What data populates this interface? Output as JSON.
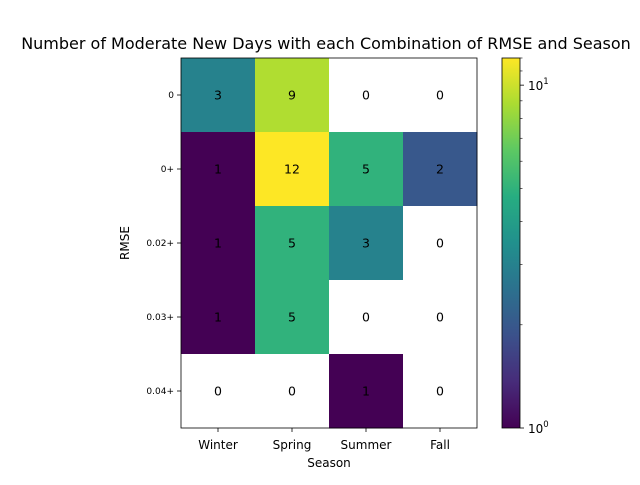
{
  "chart_data": {
    "type": "heatmap",
    "title": "Number of Moderate New Days with each Combination of RMSE and Season",
    "xlabel": "Season",
    "ylabel": "RMSE",
    "x_categories": [
      "Winter",
      "Spring",
      "Summer",
      "Fall"
    ],
    "y_categories": [
      "0",
      "0+",
      "0.02+",
      "0.03+",
      "0.04+"
    ],
    "values": [
      [
        3,
        9,
        0,
        0
      ],
      [
        1,
        12,
        5,
        2
      ],
      [
        1,
        5,
        3,
        0
      ],
      [
        1,
        5,
        0,
        0
      ],
      [
        0,
        0,
        1,
        0
      ]
    ],
    "colormap": "viridis",
    "color_scale": "log",
    "zero_color": "#ffffff",
    "colorbar": {
      "range": [
        1,
        12
      ],
      "major_ticks": [
        {
          "value": 1,
          "base": "10",
          "exp": "0"
        },
        {
          "value": 10,
          "base": "10",
          "exp": "1"
        }
      ]
    }
  }
}
